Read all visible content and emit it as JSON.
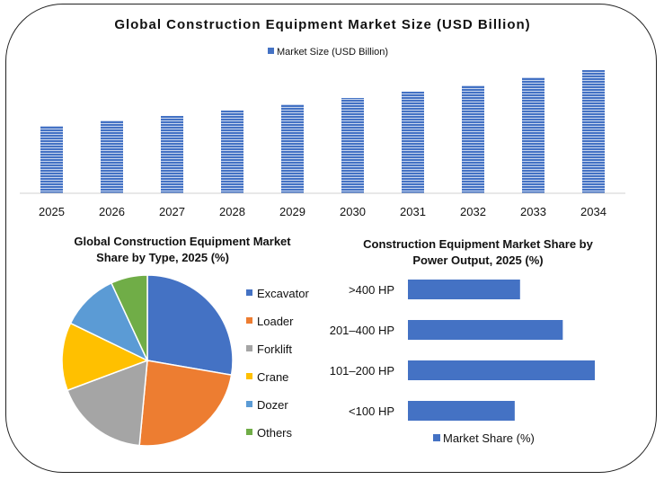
{
  "chart_data": [
    {
      "type": "bar",
      "title": "Global Construction Equipment Market Size (USD Billion)",
      "categories": [
        "2025",
        "2026",
        "2027",
        "2028",
        "2029",
        "2030",
        "2031",
        "2032",
        "2033",
        "2034"
      ],
      "series": [
        {
          "name": "Market Size (USD Billion)",
          "values": [
            150,
            162,
            172,
            184,
            198,
            212,
            226,
            240,
            258,
            274
          ]
        }
      ],
      "ylim": [
        0,
        300
      ],
      "grid": false,
      "legend": "top-center",
      "color": "#4472c4"
    },
    {
      "type": "pie",
      "title": "Global Construction Equipment Market Share by Type, 2025 (%)",
      "categories": [
        "Excavator",
        "Loader",
        "Forklift",
        "Crane",
        "Dozer",
        "Others"
      ],
      "values": [
        28,
        24,
        18,
        13,
        11,
        7
      ],
      "colors": [
        "#4472c4",
        "#ed7d31",
        "#a5a5a5",
        "#ffc000",
        "#5b9bd5",
        "#70ad47"
      ],
      "legend": "right"
    },
    {
      "type": "bar",
      "orientation": "horizontal",
      "title": "Construction Equipment Market Share by Power Output, 2025 (%)",
      "categories": [
        ">400 HP",
        "201–400 HP",
        "101–200 HP",
        "<100 HP"
      ],
      "series": [
        {
          "name": "Market Share (%)",
          "values": [
            21,
            29,
            35,
            20
          ]
        }
      ],
      "xlim": [
        0,
        35
      ],
      "legend": "bottom",
      "color": "#4472c4"
    }
  ]
}
